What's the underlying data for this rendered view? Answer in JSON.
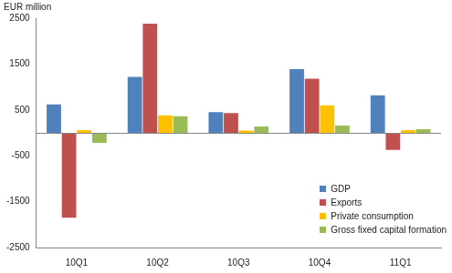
{
  "chart_data": {
    "type": "bar",
    "y_label": "EUR million",
    "categories": [
      "10Q1",
      "10Q2",
      "10Q3",
      "10Q4",
      "11Q1"
    ],
    "series": [
      {
        "name": "GDP",
        "color": "#4f81bd",
        "values": [
          620,
          1220,
          450,
          1390,
          820
        ]
      },
      {
        "name": "Exports",
        "color": "#c0504d",
        "values": [
          -1850,
          2380,
          430,
          1180,
          -370
        ]
      },
      {
        "name": "Private consumption",
        "color": "#ffc000",
        "values": [
          60,
          380,
          50,
          600,
          60
        ]
      },
      {
        "name": "Gross fixed capital formation",
        "color": "#9bbb59",
        "values": [
          -220,
          360,
          140,
          160,
          80
        ]
      }
    ],
    "ylim": [
      -2500,
      2500
    ],
    "yticks": [
      -2500,
      -1500,
      -500,
      500,
      1500,
      2500
    ],
    "grid": false,
    "legend": "lower right"
  }
}
